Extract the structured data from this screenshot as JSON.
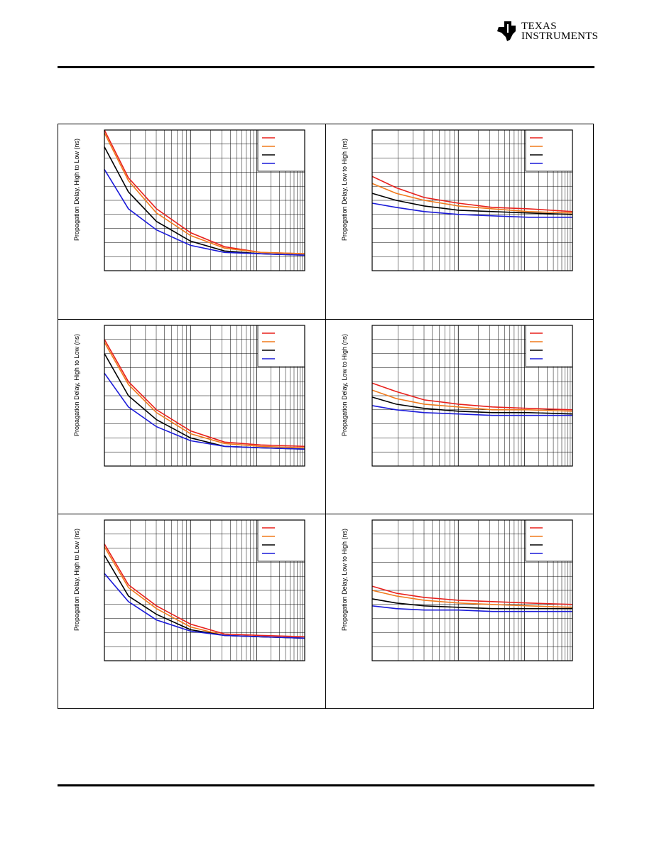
{
  "header": {
    "brand_line1": "Texas",
    "brand_line2": "Instruments"
  },
  "colors": {
    "red": "#e8201c",
    "orange": "#f07a1c",
    "black": "#000000",
    "blue": "#1a1ad8"
  },
  "chart_data": [
    {
      "type": "line",
      "ylabel": "Propagation Delay, High to Low (ns)",
      "xscale": "log",
      "grid": true,
      "legend": "top-right",
      "series": [
        {
          "color": "red",
          "values": [
            1.0,
            0.66,
            0.44,
            0.27,
            0.17,
            0.13,
            0.12
          ]
        },
        {
          "color": "orange",
          "values": [
            0.98,
            0.64,
            0.41,
            0.25,
            0.16,
            0.13,
            0.12
          ]
        },
        {
          "color": "black",
          "values": [
            0.88,
            0.56,
            0.35,
            0.21,
            0.14,
            0.12,
            0.11
          ]
        },
        {
          "color": "blue",
          "values": [
            0.72,
            0.44,
            0.29,
            0.18,
            0.13,
            0.12,
            0.11
          ]
        }
      ]
    },
    {
      "type": "line",
      "ylabel": "Propagation Delay, Low to High (ns)",
      "xscale": "log",
      "grid": true,
      "legend": "top-right",
      "series": [
        {
          "color": "red",
          "values": [
            0.67,
            0.59,
            0.52,
            0.48,
            0.45,
            0.44,
            0.42
          ]
        },
        {
          "color": "orange",
          "values": [
            0.62,
            0.55,
            0.5,
            0.46,
            0.44,
            0.42,
            0.41
          ]
        },
        {
          "color": "black",
          "values": [
            0.55,
            0.5,
            0.46,
            0.43,
            0.42,
            0.41,
            0.4
          ]
        },
        {
          "color": "blue",
          "values": [
            0.48,
            0.45,
            0.42,
            0.4,
            0.39,
            0.38,
            0.38
          ]
        }
      ]
    },
    {
      "type": "line",
      "ylabel": "Propagation Delay, High to Low (ns)",
      "xscale": "log",
      "grid": true,
      "legend": "top-right",
      "series": [
        {
          "color": "red",
          "values": [
            0.9,
            0.6,
            0.4,
            0.25,
            0.17,
            0.15,
            0.14
          ]
        },
        {
          "color": "orange",
          "values": [
            0.88,
            0.58,
            0.38,
            0.23,
            0.16,
            0.14,
            0.13
          ]
        },
        {
          "color": "black",
          "values": [
            0.8,
            0.5,
            0.33,
            0.2,
            0.14,
            0.13,
            0.12
          ]
        },
        {
          "color": "blue",
          "values": [
            0.66,
            0.42,
            0.28,
            0.18,
            0.14,
            0.13,
            0.12
          ]
        }
      ]
    },
    {
      "type": "line",
      "ylabel": "Propagation Delay, Low to High (ns)",
      "xscale": "log",
      "grid": true,
      "legend": "top-right",
      "series": [
        {
          "color": "red",
          "values": [
            0.59,
            0.53,
            0.47,
            0.44,
            0.42,
            0.41,
            0.4
          ]
        },
        {
          "color": "orange",
          "values": [
            0.54,
            0.48,
            0.44,
            0.42,
            0.4,
            0.4,
            0.39
          ]
        },
        {
          "color": "black",
          "values": [
            0.49,
            0.44,
            0.41,
            0.39,
            0.38,
            0.38,
            0.37
          ]
        },
        {
          "color": "blue",
          "values": [
            0.43,
            0.4,
            0.38,
            0.37,
            0.36,
            0.36,
            0.36
          ]
        }
      ]
    },
    {
      "type": "line",
      "ylabel": "Propagation Delay, High to Low (ns)",
      "xscale": "log",
      "grid": true,
      "legend": "top-right",
      "series": [
        {
          "color": "red",
          "values": [
            0.83,
            0.54,
            0.39,
            0.26,
            0.19,
            0.18,
            0.17
          ]
        },
        {
          "color": "orange",
          "values": [
            0.81,
            0.52,
            0.37,
            0.24,
            0.18,
            0.17,
            0.16
          ]
        },
        {
          "color": "black",
          "values": [
            0.75,
            0.46,
            0.33,
            0.22,
            0.18,
            0.17,
            0.16
          ]
        },
        {
          "color": "blue",
          "values": [
            0.62,
            0.42,
            0.29,
            0.21,
            0.18,
            0.17,
            0.16
          ]
        }
      ]
    },
    {
      "type": "line",
      "ylabel": "Propagation Delay, Low to High (ns)",
      "xscale": "log",
      "grid": true,
      "legend": "top-right",
      "series": [
        {
          "color": "red",
          "values": [
            0.53,
            0.48,
            0.45,
            0.43,
            0.42,
            0.41,
            0.4
          ]
        },
        {
          "color": "orange",
          "values": [
            0.5,
            0.46,
            0.43,
            0.41,
            0.4,
            0.39,
            0.38
          ]
        },
        {
          "color": "black",
          "values": [
            0.44,
            0.41,
            0.39,
            0.38,
            0.37,
            0.37,
            0.37
          ]
        },
        {
          "color": "blue",
          "values": [
            0.39,
            0.37,
            0.36,
            0.36,
            0.35,
            0.35,
            0.35
          ]
        }
      ]
    }
  ]
}
